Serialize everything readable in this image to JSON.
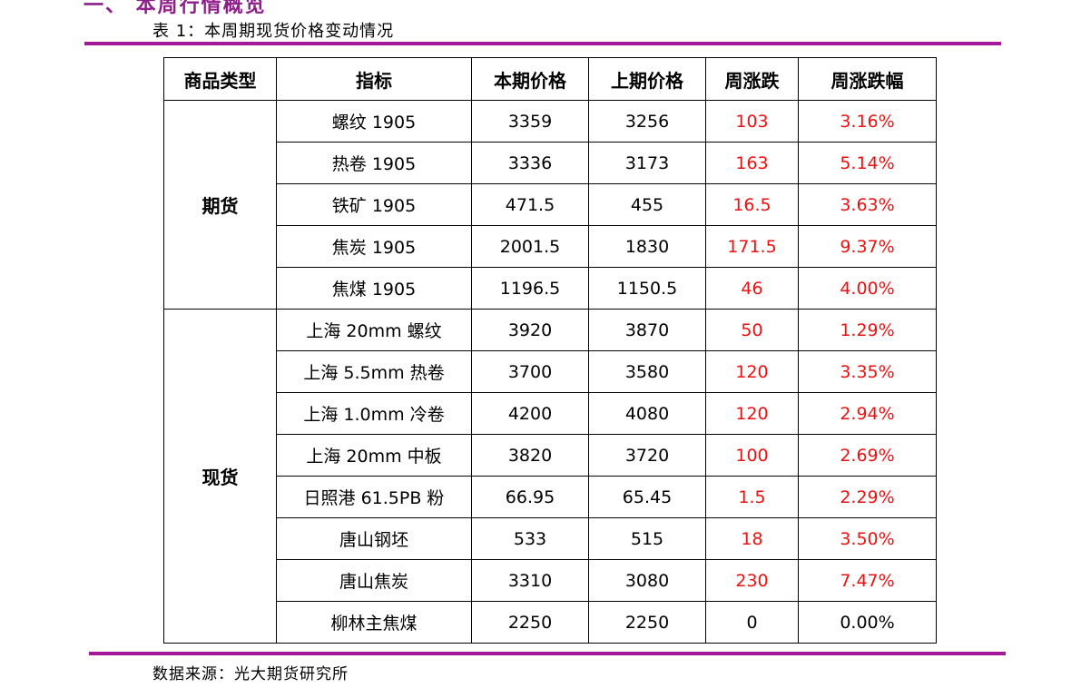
{
  "heading": "一、 本周行情概览",
  "caption": "表 1：本周期现货价格变动情况",
  "source": "数据来源：光大期货研究所",
  "colors": {
    "accent": "#a3199a",
    "up": "#ee1111"
  },
  "table": {
    "headers": [
      "商品类型",
      "指标",
      "本期价格",
      "上期价格",
      "周涨跌",
      "周涨跌幅"
    ],
    "groups": [
      {
        "type": "期货",
        "rows": [
          {
            "indicator": "螺纹 1905",
            "current": "3359",
            "previous": "3256",
            "change": "103",
            "pct": "3.16%"
          },
          {
            "indicator": "热卷 1905",
            "current": "3336",
            "previous": "3173",
            "change": "163",
            "pct": "5.14%"
          },
          {
            "indicator": "铁矿 1905",
            "current": "471.5",
            "previous": "455",
            "change": "16.5",
            "pct": "3.63%"
          },
          {
            "indicator": "焦炭 1905",
            "current": "2001.5",
            "previous": "1830",
            "change": "171.5",
            "pct": "9.37%"
          },
          {
            "indicator": "焦煤 1905",
            "current": "1196.5",
            "previous": "1150.5",
            "change": "46",
            "pct": "4.00%"
          }
        ]
      },
      {
        "type": "现货",
        "rows": [
          {
            "indicator": "上海 20mm 螺纹",
            "current": "3920",
            "previous": "3870",
            "change": "50",
            "pct": "1.29%"
          },
          {
            "indicator": "上海 5.5mm 热卷",
            "current": "3700",
            "previous": "3580",
            "change": "120",
            "pct": "3.35%"
          },
          {
            "indicator": "上海 1.0mm 冷卷",
            "current": "4200",
            "previous": "4080",
            "change": "120",
            "pct": "2.94%"
          },
          {
            "indicator": "上海 20mm 中板",
            "current": "3820",
            "previous": "3720",
            "change": "100",
            "pct": "2.69%"
          },
          {
            "indicator": "日照港 61.5PB 粉",
            "current": "66.95",
            "previous": "65.45",
            "change": "1.5",
            "pct": "2.29%"
          },
          {
            "indicator": "唐山钢坯",
            "current": "533",
            "previous": "515",
            "change": "18",
            "pct": "3.50%"
          },
          {
            "indicator": "唐山焦炭",
            "current": "3310",
            "previous": "3080",
            "change": "230",
            "pct": "7.47%"
          },
          {
            "indicator": "柳林主焦煤",
            "current": "2250",
            "previous": "2250",
            "change": "0",
            "pct": "0.00%"
          }
        ]
      }
    ]
  }
}
